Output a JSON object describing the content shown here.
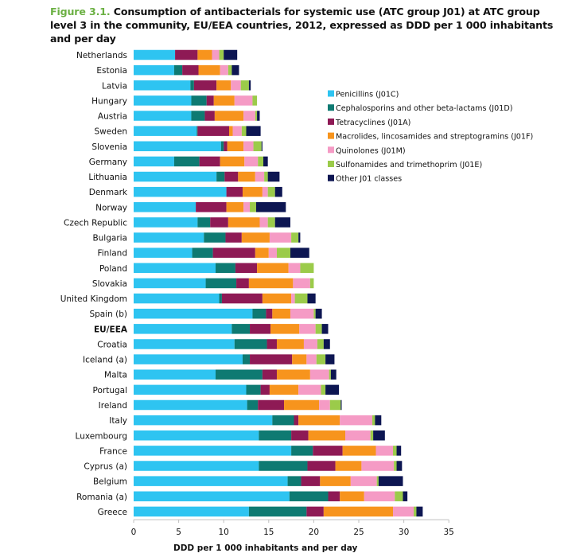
{
  "title": {
    "figure_label": "Figure 3.1.",
    "text": "Consumption of antibacterials for systemic use (ATC group J01) at ATC group level 3 in the community, EU/EEA countries, 2012, expressed as DDD per 1 000 inhabitants and per day"
  },
  "chart_data": {
    "type": "bar",
    "orientation": "horizontal",
    "stacked": true,
    "title": "Consumption of antibacterials for systemic use (ATC group J01) at ATC group level 3 in the community, EU/EEA countries, 2012, expressed as DDD per 1 000 inhabitants and per day",
    "xlabel": "DDD per 1 000 inhabitants and per day",
    "ylabel": "",
    "xlim": [
      0,
      35
    ],
    "xticks": [
      0,
      5,
      10,
      15,
      20,
      25,
      30,
      35
    ],
    "grid": false,
    "legend_position": "right",
    "highlight_category": "EU/EEA",
    "categories": [
      "Netherlands",
      "Estonia",
      "Latvia",
      "Hungary",
      "Austria",
      "Sweden",
      "Slovenia",
      "Germany",
      "Lithuania",
      "Denmark",
      "Norway",
      "Czech Republic",
      "Bulgaria",
      "Finland",
      "Poland",
      "Slovakia",
      "United Kingdom",
      "Spain (b)",
      "EU/EEA",
      "Croatia",
      "Iceland (a)",
      "Malta",
      "Portugal",
      "Ireland",
      "Italy",
      "Luxembourg",
      "France",
      "Cyprus (a)",
      "Belgium",
      "Romania (a)",
      "Greece"
    ],
    "series": [
      {
        "name": "Penicillins (J01C)",
        "color": "#2ec4f1",
        "values": [
          4.6,
          4.5,
          6.3,
          6.4,
          6.4,
          7.0,
          9.7,
          4.5,
          9.2,
          10.3,
          6.9,
          7.1,
          7.8,
          6.5,
          9.1,
          8.0,
          9.5,
          13.2,
          10.9,
          11.2,
          12.1,
          9.1,
          12.5,
          12.6,
          15.4,
          13.9,
          17.5,
          13.9,
          17.1,
          17.3,
          12.8
        ]
      },
      {
        "name": "Cephalosporins and other beta-lactams (J01D)",
        "color": "#0e7a72",
        "values": [
          0.0,
          0.9,
          0.4,
          1.7,
          1.5,
          0.1,
          0.3,
          2.8,
          0.9,
          0.0,
          0.0,
          1.4,
          2.4,
          2.3,
          2.2,
          3.4,
          0.3,
          1.5,
          2.0,
          3.6,
          0.8,
          5.2,
          1.6,
          1.2,
          2.4,
          3.6,
          2.4,
          5.4,
          1.5,
          4.3,
          6.4
        ]
      },
      {
        "name": "Tetracyclines (J01A)",
        "color": "#8e1a55",
        "values": [
          2.5,
          1.8,
          2.5,
          0.8,
          1.1,
          3.5,
          0.4,
          2.3,
          1.5,
          1.8,
          3.4,
          2.0,
          1.8,
          4.7,
          2.4,
          1.4,
          4.5,
          0.7,
          2.3,
          1.1,
          4.7,
          1.6,
          1.0,
          2.9,
          0.5,
          1.9,
          3.3,
          3.1,
          2.1,
          1.3,
          1.9
        ]
      },
      {
        "name": "Macrolides, lincosamides and streptogramins (J01F)",
        "color": "#f7941d",
        "values": [
          1.6,
          2.4,
          1.6,
          2.3,
          3.2,
          0.4,
          1.8,
          2.7,
          1.9,
          2.2,
          1.9,
          3.5,
          3.1,
          1.5,
          3.5,
          4.9,
          3.2,
          2.0,
          3.2,
          3.0,
          1.6,
          3.7,
          3.2,
          3.9,
          4.6,
          4.1,
          3.7,
          2.9,
          3.4,
          2.7,
          7.7
        ]
      },
      {
        "name": "Quinolones (J01M)",
        "color": "#f59bc5",
        "values": [
          0.8,
          0.9,
          1.1,
          2.0,
          1.3,
          1.0,
          1.1,
          1.5,
          1.0,
          0.6,
          0.7,
          0.9,
          2.4,
          0.9,
          1.3,
          1.9,
          0.4,
          2.6,
          1.8,
          1.5,
          1.1,
          2.1,
          2.5,
          1.2,
          3.6,
          2.8,
          1.9,
          3.6,
          2.9,
          3.4,
          2.3
        ]
      },
      {
        "name": "Sulfonamides and trimethoprim (J01E)",
        "color": "#9bcb4a",
        "values": [
          0.5,
          0.4,
          0.9,
          0.5,
          0.2,
          0.5,
          0.9,
          0.6,
          0.4,
          0.8,
          0.7,
          0.8,
          0.8,
          1.5,
          1.5,
          0.4,
          1.4,
          0.2,
          0.7,
          0.7,
          1.0,
          0.2,
          0.5,
          1.2,
          0.3,
          0.3,
          0.4,
          0.3,
          0.2,
          0.9,
          0.3
        ]
      },
      {
        "name": "Other J01 classes",
        "color": "#0d1652",
        "values": [
          1.5,
          0.8,
          0.2,
          0.0,
          0.3,
          1.6,
          0.1,
          0.5,
          1.3,
          0.8,
          3.3,
          1.7,
          0.2,
          2.1,
          0.0,
          0.0,
          0.9,
          0.7,
          0.7,
          0.7,
          1.0,
          0.6,
          1.5,
          0.1,
          0.7,
          1.3,
          0.5,
          0.6,
          2.7,
          0.5,
          0.7
        ]
      }
    ]
  }
}
